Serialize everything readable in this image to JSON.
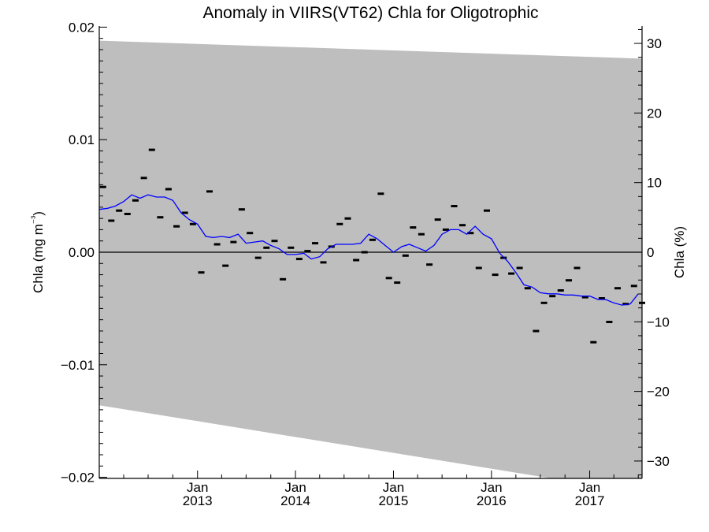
{
  "chart_data": {
    "type": "line",
    "title": "Anomaly in VIIRS(VT62) Chla for Oligotrophic",
    "ylabel": "Chla (mg m⁻³)",
    "ylabel_right": "Chla (%)",
    "xlabel": "",
    "xlim": [
      "2012-01-01",
      "2017-07-15"
    ],
    "ylim": [
      -0.0201,
      0.0201
    ],
    "ylim_right": [
      -32.5,
      32.5
    ],
    "x_ticks": [
      {
        "top": "Jan",
        "bottom": "2013",
        "date": "2013-01-01"
      },
      {
        "top": "Jan",
        "bottom": "2014",
        "date": "2014-01-01"
      },
      {
        "top": "Jan",
        "bottom": "2015",
        "date": "2015-01-01"
      },
      {
        "top": "Jan",
        "bottom": "2016",
        "date": "2016-01-01"
      },
      {
        "top": "Jan",
        "bottom": "2017",
        "date": "2017-01-01"
      }
    ],
    "y_ticks": [
      {
        "value": 0.02,
        "label": "0.02"
      },
      {
        "value": 0.01,
        "label": "0.01"
      },
      {
        "value": 0.0,
        "label": "0.00"
      },
      {
        "value": -0.01,
        "label": "−0.01"
      },
      {
        "value": -0.02,
        "label": "−0.02"
      }
    ],
    "y_right_ticks": [
      {
        "value": 30,
        "label": "30"
      },
      {
        "value": 20,
        "label": "20"
      },
      {
        "value": 10,
        "label": "10"
      },
      {
        "value": 0,
        "label": "0"
      },
      {
        "value": -10,
        "label": "−10"
      },
      {
        "value": -20,
        "label": "−20"
      },
      {
        "value": -30,
        "label": "−30"
      }
    ],
    "zero_line": true,
    "band": {
      "color": "#bebebe",
      "x": [
        "2012-01-01",
        "2017-07-15"
      ],
      "upper": [
        0.0188,
        0.0172
      ],
      "lower": [
        -0.0136,
        -0.0214
      ]
    },
    "series": [
      {
        "kind": "points",
        "color": "#000000",
        "x": [
          "2012-01-15",
          "2012-02-15",
          "2012-03-15",
          "2012-04-15",
          "2012-05-15",
          "2012-06-15",
          "2012-07-15",
          "2012-08-15",
          "2012-09-15",
          "2012-10-15",
          "2012-11-15",
          "2012-12-15",
          "2013-01-15",
          "2013-02-15",
          "2013-03-15",
          "2013-04-15",
          "2013-05-15",
          "2013-06-15",
          "2013-07-15",
          "2013-08-15",
          "2013-09-15",
          "2013-10-15",
          "2013-11-15",
          "2013-12-15",
          "2014-01-15",
          "2014-02-15",
          "2014-03-15",
          "2014-04-15",
          "2014-05-15",
          "2014-06-15",
          "2014-07-15",
          "2014-08-15",
          "2014-09-15",
          "2014-10-15",
          "2014-11-15",
          "2014-12-15",
          "2015-01-15",
          "2015-02-15",
          "2015-03-15",
          "2015-04-15",
          "2015-05-15",
          "2015-06-15",
          "2015-07-15",
          "2015-08-15",
          "2015-09-15",
          "2015-10-15",
          "2015-11-15",
          "2015-12-15",
          "2016-01-15",
          "2016-02-15",
          "2016-03-15",
          "2016-04-15",
          "2016-05-15",
          "2016-06-15",
          "2016-07-15",
          "2016-08-15",
          "2016-09-15",
          "2016-10-15",
          "2016-11-15",
          "2016-12-15",
          "2017-01-15",
          "2017-02-15",
          "2017-03-15",
          "2017-04-15",
          "2017-05-15",
          "2017-06-15",
          "2017-07-15"
        ],
        "values": [
          0.0058,
          0.0028,
          0.0037,
          0.0034,
          0.0046,
          0.0066,
          0.0091,
          0.0031,
          0.0056,
          0.0023,
          0.0035,
          0.0025,
          -0.0018,
          0.0054,
          0.0007,
          -0.0012,
          0.0009,
          0.0038,
          0.0017,
          -0.0005,
          0.0004,
          0.001,
          -0.0024,
          0.0004,
          -0.0006,
          0.0001,
          0.0008,
          -0.0009,
          0.0005,
          0.0025,
          0.003,
          -0.0007,
          0.0,
          0.0011,
          0.0052,
          -0.0023,
          -0.0027,
          -0.0003,
          0.0022,
          0.0016,
          -0.0011,
          0.0029,
          0.002,
          0.0041,
          0.0024,
          0.0017,
          -0.0014,
          0.0037,
          -0.002,
          -0.0005,
          -0.0019,
          -0.0014,
          -0.0032,
          -0.007,
          -0.0045,
          -0.0039,
          -0.0034,
          -0.0025,
          -0.0014,
          -0.004,
          -0.008,
          -0.0041,
          -0.0062,
          -0.0032,
          -0.0046,
          -0.003,
          -0.0045
        ]
      },
      {
        "kind": "line",
        "color": "#0000ff",
        "x": [
          "2012-01-01",
          "2012-02-01",
          "2012-03-01",
          "2012-04-01",
          "2012-05-01",
          "2012-06-01",
          "2012-07-01",
          "2012-08-01",
          "2012-09-01",
          "2012-10-01",
          "2012-11-01",
          "2012-12-01",
          "2013-01-01",
          "2013-02-01",
          "2013-03-01",
          "2013-04-01",
          "2013-05-01",
          "2013-06-01",
          "2013-07-01",
          "2013-08-01",
          "2013-09-01",
          "2013-10-01",
          "2013-11-01",
          "2013-12-01",
          "2014-01-01",
          "2014-02-01",
          "2014-03-01",
          "2014-04-01",
          "2014-05-01",
          "2014-06-01",
          "2014-07-01",
          "2014-08-01",
          "2014-09-01",
          "2014-10-01",
          "2014-11-01",
          "2014-12-01",
          "2015-01-01",
          "2015-02-01",
          "2015-03-01",
          "2015-04-01",
          "2015-05-01",
          "2015-06-01",
          "2015-07-01",
          "2015-08-01",
          "2015-09-01",
          "2015-10-01",
          "2015-11-01",
          "2015-12-01",
          "2016-01-01",
          "2016-02-01",
          "2016-03-01",
          "2016-04-01",
          "2016-05-01",
          "2016-06-01",
          "2016-07-01",
          "2016-08-01",
          "2016-09-01",
          "2016-10-01",
          "2016-11-01",
          "2016-12-01",
          "2017-01-01",
          "2017-02-01",
          "2017-03-01",
          "2017-04-01",
          "2017-05-01",
          "2017-06-01",
          "2017-07-01"
        ],
        "values": [
          0.0038,
          0.0039,
          0.0041,
          0.0045,
          0.0051,
          0.0048,
          0.0051,
          0.0049,
          0.0049,
          0.0046,
          0.0035,
          0.0029,
          0.0025,
          0.0014,
          0.0013,
          0.0014,
          0.0013,
          0.0016,
          0.0008,
          0.0009,
          0.001,
          0.0006,
          0.0003,
          -0.0002,
          -0.0002,
          -0.0001,
          -0.0006,
          -0.0004,
          0.0003,
          0.0007,
          0.0007,
          0.0007,
          0.0008,
          0.0016,
          0.0012,
          0.0006,
          0.0,
          0.0005,
          0.0007,
          0.0004,
          0.0001,
          0.0006,
          0.0016,
          0.002,
          0.002,
          0.0016,
          0.0023,
          0.0016,
          0.0012,
          -0.0001,
          -0.0008,
          -0.0018,
          -0.0029,
          -0.0031,
          -0.0036,
          -0.0037,
          -0.0037,
          -0.0038,
          -0.0038,
          -0.0039,
          -0.0039,
          -0.0042,
          -0.0042,
          -0.0045,
          -0.0047,
          -0.0046,
          -0.0037
        ]
      }
    ]
  }
}
